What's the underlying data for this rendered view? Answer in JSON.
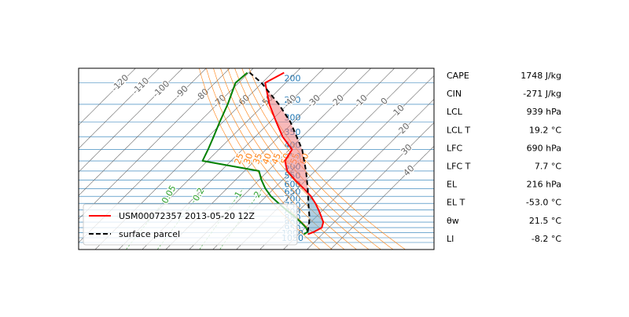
{
  "chart_data": {
    "type": "skewt",
    "ylim": [
      1130,
      172
    ],
    "xlim": [
      -67,
      84
    ],
    "skew_angle": 45,
    "isobars": [
      200,
      250,
      300,
      350,
      400,
      450,
      500,
      550,
      600,
      650,
      700,
      750,
      800,
      850,
      900,
      950,
      1000,
      1050
    ],
    "isobar_color": "#1f77b4",
    "isotherms": [
      -120,
      -110,
      -100,
      -90,
      -80,
      -70,
      -60,
      -50,
      -40,
      -30,
      -20,
      -10,
      0,
      10,
      20,
      30,
      40
    ],
    "isotherm_color": "#666666",
    "dry_adiabats": [
      25,
      30,
      35,
      40,
      45,
      50,
      55,
      60
    ],
    "dry_adiabat_color": "#ff7f0e",
    "mixing_ratios": [
      0.05,
      0.2,
      1,
      2
    ],
    "mixing_ratio_color": "#2ca02c",
    "series": [
      {
        "name": "USM00072357 2013-05-20 12Z",
        "color": "#ff0000",
        "pressure": [
          965,
          940,
          900,
          850,
          800,
          750,
          700,
          650,
          600,
          550,
          500,
          450,
          400,
          350,
          300,
          250,
          200,
          180
        ],
        "values": [
          23.9,
          25.5,
          27.0,
          25.3,
          21.9,
          18.2,
          14.0,
          9.0,
          2.7,
          -4.5,
          -11.8,
          -17.1,
          -18.9,
          -28.4,
          -37.4,
          -47.8,
          -58.7,
          -55.0
        ]
      },
      {
        "color": "#008000",
        "pressure": [
          965,
          940,
          900,
          850,
          800,
          750,
          700,
          650,
          600,
          550,
          500,
          450,
          400,
          350,
          300,
          250,
          200,
          180
        ],
        "values": [
          22.2,
          22.8,
          20.3,
          15.7,
          10.5,
          4.5,
          -1.6,
          -8.0,
          -13.6,
          -18.8,
          -23.8,
          -52.1,
          -54.6,
          -57.7,
          -61.4,
          -65.5,
          -71.3,
          -70.6
        ]
      },
      {
        "name": "surface parcel",
        "color": "#000000",
        "dash": true,
        "pressure": [
          940,
          900,
          850,
          800,
          700,
          600,
          500,
          400,
          300,
          250,
          200,
          180
        ],
        "values": [
          22.8,
          21.3,
          19.3,
          16.9,
          11.0,
          4.4,
          -3.8,
          -14.6,
          -31.4,
          -43.8,
          -60.3,
          -69.6
        ]
      }
    ],
    "cape_color": "#f08080",
    "cin_color": "#6fa8c8",
    "legend": "lower left"
  },
  "stats": [
    [
      "CAPE",
      "1748 J/kg"
    ],
    [
      "CIN",
      "-271 J/kg"
    ],
    [
      "LCL",
      "939 hPa"
    ],
    [
      "LCL T",
      "19.2 °C"
    ],
    [
      "LFC",
      "690 hPa"
    ],
    [
      "LFC T",
      "7.7 °C"
    ],
    [
      "EL",
      "216 hPa"
    ],
    [
      "EL T",
      "-53.0 °C"
    ],
    [
      "θw",
      "21.5 °C"
    ],
    [
      "LI",
      "-8.2 °C"
    ]
  ]
}
